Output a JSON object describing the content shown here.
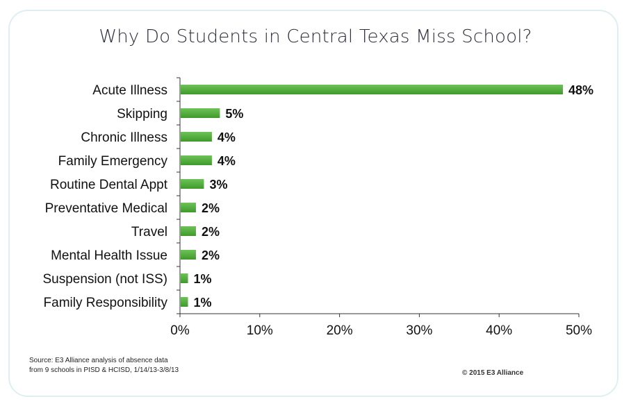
{
  "chart_data": {
    "type": "bar",
    "orientation": "horizontal",
    "title": "Why Do Students in Central Texas Miss School?",
    "categories": [
      "Acute Illness",
      "Skipping",
      "Chronic Illness",
      "Family Emergency",
      "Routine Dental Appt",
      "Preventative Medical",
      "Travel",
      "Mental Health Issue",
      "Suspension (not ISS)",
      "Family Responsibility"
    ],
    "values": [
      48,
      5,
      4,
      4,
      3,
      2,
      2,
      2,
      1,
      1
    ],
    "value_labels": [
      "48%",
      "5%",
      "4%",
      "4%",
      "3%",
      "2%",
      "2%",
      "2%",
      "1%",
      "1%"
    ],
    "xlim": [
      0,
      50
    ],
    "x_ticks": [
      0,
      10,
      20,
      30,
      40,
      50
    ],
    "x_tick_labels": [
      "0%",
      "10%",
      "20%",
      "30%",
      "40%",
      "50%"
    ],
    "xlabel": "",
    "ylabel": "",
    "grid": false,
    "bar_color": "#3f9a2a",
    "bar_color_light": "#6dc257"
  },
  "footer": {
    "source_line1": "Source: E3 Alliance analysis of  absence data",
    "source_line2": "from 9 schools in PISD & HCISD, 1/14/13-3/8/13",
    "copyright": "© 2015 E3 Alliance"
  }
}
